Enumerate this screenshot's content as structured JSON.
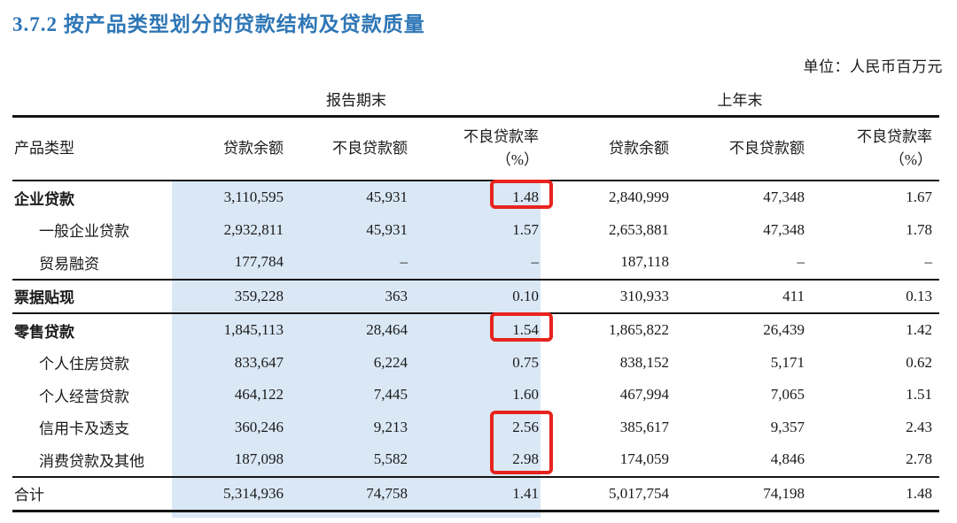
{
  "title": "3.7.2 按产品类型划分的贷款结构及贷款质量",
  "unit_label": "单位：人民币百万元",
  "colors": {
    "title_blue": "#2e76b6",
    "highlight_blue": "#dae8f6",
    "annotation_red": "#e8231e"
  },
  "table": {
    "period_headers": {
      "current": "报告期末",
      "previous": "上年末"
    },
    "col_headers": {
      "product_type": "产品类型",
      "loan_balance": "贷款余额",
      "npl_amount": "不良贷款额",
      "npl_ratio_line1": "不良贷款率",
      "npl_ratio_line2": "（%）"
    },
    "rows": [
      {
        "label": "企业贷款",
        "style": "bold",
        "rule": "none",
        "cur": [
          "3,110,595",
          "45,931",
          "1.48"
        ],
        "prev": [
          "2,840,999",
          "47,348",
          "1.67"
        ]
      },
      {
        "label": "一般企业贷款",
        "style": "indent",
        "rule": "none",
        "cur": [
          "2,932,811",
          "45,931",
          "1.57"
        ],
        "prev": [
          "2,653,881",
          "47,348",
          "1.78"
        ]
      },
      {
        "label": "贸易融资",
        "style": "indent",
        "rule": "thin",
        "cur": [
          "177,784",
          "–",
          "–"
        ],
        "prev": [
          "187,118",
          "–",
          "–"
        ]
      },
      {
        "label": "票据贴现",
        "style": "bold",
        "rule": "thin",
        "cur": [
          "359,228",
          "363",
          "0.10"
        ],
        "prev": [
          "310,933",
          "411",
          "0.13"
        ]
      },
      {
        "label": "零售贷款",
        "style": "bold",
        "rule": "none",
        "cur": [
          "1,845,113",
          "28,464",
          "1.54"
        ],
        "prev": [
          "1,865,822",
          "26,439",
          "1.42"
        ]
      },
      {
        "label": "个人住房贷款",
        "style": "indent",
        "rule": "none",
        "cur": [
          "833,647",
          "6,224",
          "0.75"
        ],
        "prev": [
          "838,152",
          "5,171",
          "0.62"
        ]
      },
      {
        "label": "个人经营贷款",
        "style": "indent",
        "rule": "none",
        "cur": [
          "464,122",
          "7,445",
          "1.60"
        ],
        "prev": [
          "467,994",
          "7,065",
          "1.51"
        ]
      },
      {
        "label": "信用卡及透支",
        "style": "indent",
        "rule": "none",
        "cur": [
          "360,246",
          "9,213",
          "2.56"
        ],
        "prev": [
          "385,617",
          "9,357",
          "2.43"
        ]
      },
      {
        "label": "消费贷款及其他",
        "style": "indent",
        "rule": "thin",
        "cur": [
          "187,098",
          "5,582",
          "2.98"
        ],
        "prev": [
          "174,059",
          "4,846",
          "2.78"
        ]
      },
      {
        "label": "合计",
        "style": "plain",
        "rule": "thick",
        "cur": [
          "5,314,936",
          "74,758",
          "1.41"
        ],
        "prev": [
          "5,017,754",
          "74,198",
          "1.48"
        ]
      }
    ],
    "red_boxes": [
      {
        "row_start": 0,
        "row_end": 0,
        "column": "cur_ratio",
        "marked_values": [
          "1.48"
        ]
      },
      {
        "row_start": 4,
        "row_end": 4,
        "column": "cur_ratio",
        "marked_values": [
          "1.54"
        ]
      },
      {
        "row_start": 7,
        "row_end": 8,
        "column": "cur_ratio",
        "marked_values": [
          "2.56",
          "2.98"
        ]
      }
    ]
  }
}
